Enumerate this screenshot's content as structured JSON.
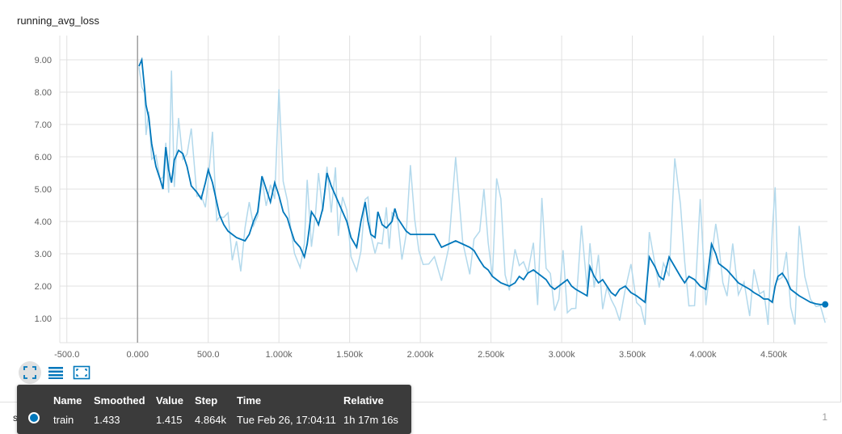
{
  "chart_data": {
    "type": "line",
    "title": "running_avg_loss",
    "x_tick_labels": [
      "-500.0",
      "0.000",
      "500.0",
      "1.000k",
      "1.500k",
      "2.000k",
      "2.500k",
      "3.000k",
      "3.500k",
      "4.000k",
      "4.500k"
    ],
    "x_ticks": [
      -500,
      0,
      500,
      1000,
      1500,
      2000,
      2500,
      3000,
      3500,
      4000,
      4500
    ],
    "y_tick_labels": [
      "1.00",
      "2.00",
      "3.00",
      "4.00",
      "5.00",
      "6.00",
      "7.00",
      "8.00",
      "9.00"
    ],
    "y_ticks": [
      1,
      2,
      3,
      4,
      5,
      6,
      7,
      8,
      9
    ],
    "xlim": [
      -550,
      4880
    ],
    "ylim": [
      0.25,
      9.75
    ],
    "grid": true,
    "series": [
      {
        "name": "train",
        "smoothed": true,
        "color": "#0077bb",
        "raw_color": "#b3d9ec",
        "x": [
          10,
          30,
          50,
          60,
          80,
          100,
          130,
          160,
          180,
          200,
          220,
          240,
          260,
          290,
          320,
          350,
          380,
          420,
          450,
          480,
          500,
          530,
          560,
          580,
          610,
          640,
          670,
          700,
          730,
          760,
          790,
          820,
          850,
          880,
          910,
          940,
          970,
          1000,
          1030,
          1060,
          1080,
          1110,
          1150,
          1180,
          1200,
          1230,
          1260,
          1280,
          1310,
          1340,
          1370,
          1400,
          1420,
          1450,
          1480,
          1510,
          1550,
          1580,
          1610,
          1630,
          1650,
          1680,
          1700,
          1730,
          1760,
          1780,
          1800,
          1820,
          1840,
          1870,
          1900,
          1930,
          1960,
          1990,
          2020,
          2060,
          2100,
          2150,
          2200,
          2250,
          2300,
          2350,
          2380,
          2420,
          2450,
          2480,
          2510,
          2540,
          2570,
          2600,
          2630,
          2670,
          2700,
          2730,
          2760,
          2800,
          2830,
          2860,
          2890,
          2920,
          2950,
          2980,
          3010,
          3040,
          3070,
          3100,
          3140,
          3180,
          3200,
          3230,
          3260,
          3290,
          3320,
          3350,
          3380,
          3410,
          3450,
          3490,
          3530,
          3560,
          3590,
          3620,
          3660,
          3690,
          3720,
          3760,
          3800,
          3840,
          3870,
          3900,
          3940,
          3980,
          4020,
          4060,
          4090,
          4110,
          4140,
          4170,
          4210,
          4250,
          4290,
          4330,
          4360,
          4400,
          4430,
          4460,
          4490,
          4510,
          4530,
          4560,
          4590,
          4620,
          4650,
          4680,
          4720,
          4760,
          4800,
          4830,
          4864
        ],
        "y": [
          8.8,
          9.0,
          8.1,
          7.6,
          7.2,
          6.4,
          5.7,
          5.3,
          5.0,
          6.3,
          5.6,
          5.2,
          5.9,
          6.2,
          6.1,
          5.7,
          5.1,
          4.9,
          4.7,
          5.2,
          5.6,
          5.2,
          4.6,
          4.2,
          3.9,
          3.7,
          3.6,
          3.5,
          3.45,
          3.4,
          3.6,
          4.0,
          4.3,
          5.4,
          5.0,
          4.6,
          5.2,
          4.8,
          4.3,
          4.1,
          3.8,
          3.4,
          3.2,
          2.9,
          3.3,
          4.3,
          4.1,
          3.9,
          4.4,
          5.5,
          5.1,
          4.8,
          4.6,
          4.3,
          4.0,
          3.5,
          3.2,
          4.0,
          4.6,
          4.0,
          3.6,
          3.5,
          4.3,
          3.9,
          3.8,
          3.9,
          4.0,
          4.4,
          4.1,
          3.9,
          3.7,
          3.6,
          3.6,
          3.6,
          3.6,
          3.6,
          3.6,
          3.2,
          3.3,
          3.4,
          3.3,
          3.2,
          3.1,
          2.8,
          2.6,
          2.5,
          2.3,
          2.2,
          2.1,
          2.05,
          2.0,
          2.1,
          2.3,
          2.2,
          2.4,
          2.5,
          2.4,
          2.3,
          2.2,
          2.0,
          1.9,
          2.0,
          2.1,
          2.2,
          2.0,
          1.9,
          1.8,
          1.7,
          2.6,
          2.3,
          2.1,
          2.2,
          2.0,
          1.8,
          1.7,
          1.9,
          2.0,
          1.8,
          1.7,
          1.6,
          1.5,
          2.9,
          2.6,
          2.3,
          2.2,
          2.9,
          2.6,
          2.3,
          2.1,
          2.3,
          2.2,
          2.0,
          1.9,
          3.3,
          3.0,
          2.7,
          2.6,
          2.5,
          2.3,
          2.1,
          2.0,
          1.9,
          1.8,
          1.7,
          1.6,
          1.6,
          1.5,
          2.0,
          2.3,
          2.4,
          2.2,
          1.9,
          1.8,
          1.7,
          1.6,
          1.5,
          1.45,
          1.43,
          1.433
        ]
      }
    ]
  },
  "toolbar": {
    "fit_icon": "fit-domain-icon",
    "log_icon": "toggle-y-log-icon",
    "expand_icon": "expand-chart-icon"
  },
  "tooltip": {
    "headers": {
      "name": "Name",
      "smoothed": "Smoothed",
      "value": "Value",
      "step": "Step",
      "time": "Time",
      "relative": "Relative"
    },
    "row": {
      "name": "train",
      "smoothed": "1.433",
      "value": "1.415",
      "step": "4.864k",
      "time": "Tue Feb 26, 17:04:11",
      "relative": "1h 17m 16s"
    }
  },
  "footer": {
    "left_text": "se",
    "left_text_2": "e",
    "page_number": "1"
  }
}
